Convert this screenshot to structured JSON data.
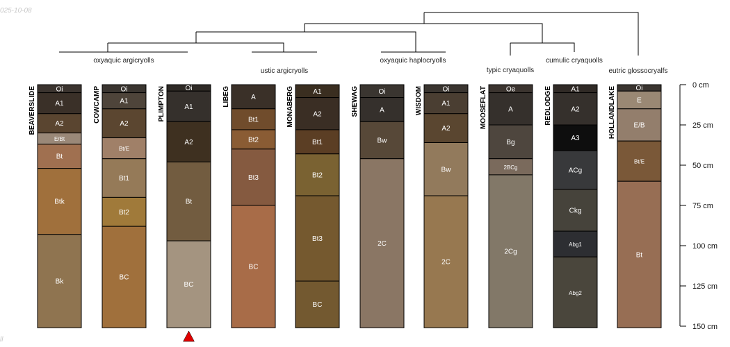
{
  "stamp_top": "025-10-08",
  "stamp_bottom": "ll",
  "depth_axis": {
    "unit": "cm",
    "max": 150,
    "ticks": [
      {
        "value": 0,
        "label": "0 cm"
      },
      {
        "value": 25,
        "label": "25 cm"
      },
      {
        "value": 50,
        "label": "50 cm"
      },
      {
        "value": 75,
        "label": "75 cm"
      },
      {
        "value": 100,
        "label": "100 cm"
      },
      {
        "value": 125,
        "label": "125 cm"
      },
      {
        "value": 150,
        "label": "150 cm"
      }
    ]
  },
  "taxa": [
    {
      "key": "oaa",
      "label": "oxyaquic argicryolls"
    },
    {
      "key": "ua",
      "label": "ustic argicryolls"
    },
    {
      "key": "oah",
      "label": "oxyaquic haplocryolls"
    },
    {
      "key": "tc",
      "label": "typic cryaquolls"
    },
    {
      "key": "cc",
      "label": "cumulic cryaquolls"
    },
    {
      "key": "eg",
      "label": "eutric glossocryalfs"
    }
  ],
  "marker": {
    "profile_index": 2,
    "color": "#e00000"
  },
  "profiles": [
    {
      "name": "BEAVERSLIDE",
      "horizons": [
        {
          "name": "Oi",
          "top": 0,
          "bottom": 5,
          "color": "#3b342f",
          "text": "#ffffff"
        },
        {
          "name": "A1",
          "top": 5,
          "bottom": 18,
          "color": "#3a3028",
          "text": "#ffffff"
        },
        {
          "name": "A2",
          "top": 18,
          "bottom": 30,
          "color": "#5a4530",
          "text": "#ffffff"
        },
        {
          "name": "E/Bt",
          "top": 30,
          "bottom": 37,
          "color": "#9a8878",
          "text": "#ffffff",
          "small": true
        },
        {
          "name": "Bt",
          "top": 37,
          "bottom": 52,
          "color": "#a07050",
          "text": "#ffffff"
        },
        {
          "name": "Btk",
          "top": 52,
          "bottom": 93,
          "color": "#a0703c",
          "text": "#ffffff"
        },
        {
          "name": "Bk",
          "top": 93,
          "bottom": 151,
          "color": "#8f7450",
          "text": "#ffffff"
        }
      ]
    },
    {
      "name": "COWCAMP",
      "horizons": [
        {
          "name": "Oi",
          "top": 0,
          "bottom": 5,
          "color": "#3a3530",
          "text": "#ffffff"
        },
        {
          "name": "A1",
          "top": 5,
          "bottom": 15,
          "color": "#4e443a",
          "text": "#ffffff"
        },
        {
          "name": "A2",
          "top": 15,
          "bottom": 33,
          "color": "#5b4630",
          "text": "#ffffff"
        },
        {
          "name": "Bt/E",
          "top": 33,
          "bottom": 46,
          "color": "#a08068",
          "text": "#ffffff",
          "small": true
        },
        {
          "name": "Bt1",
          "top": 46,
          "bottom": 70,
          "color": "#957a58",
          "text": "#ffffff"
        },
        {
          "name": "Bt2",
          "top": 70,
          "bottom": 88,
          "color": "#a07a3a",
          "text": "#ffffff"
        },
        {
          "name": "BC",
          "top": 88,
          "bottom": 151,
          "color": "#a0703c",
          "text": "#ffffff"
        }
      ]
    },
    {
      "name": "PLIMPTON",
      "horizons": [
        {
          "name": "Oi",
          "top": 0,
          "bottom": 4,
          "color": "#2e2a26",
          "text": "#ffffff"
        },
        {
          "name": "A1",
          "top": 4,
          "bottom": 23,
          "color": "#35302c",
          "text": "#ffffff"
        },
        {
          "name": "A2",
          "top": 23,
          "bottom": 48,
          "color": "#3e3020",
          "text": "#ffffff"
        },
        {
          "name": "Bt",
          "top": 48,
          "bottom": 97,
          "color": "#725c40",
          "text": "#ffffff"
        },
        {
          "name": "BC",
          "top": 97,
          "bottom": 151,
          "color": "#a49480",
          "text": "#ffffff"
        }
      ]
    },
    {
      "name": "LIBEG",
      "horizons": [
        {
          "name": "A",
          "top": 0,
          "bottom": 15,
          "color": "#3a3028",
          "text": "#ffffff"
        },
        {
          "name": "Bt1",
          "top": 15,
          "bottom": 28,
          "color": "#704c2c",
          "text": "#ffffff"
        },
        {
          "name": "Bt2",
          "top": 28,
          "bottom": 40,
          "color": "#8a5c34",
          "text": "#ffffff"
        },
        {
          "name": "Bt3",
          "top": 40,
          "bottom": 75,
          "color": "#855a40",
          "text": "#ffffff"
        },
        {
          "name": "BC",
          "top": 75,
          "bottom": 151,
          "color": "#a86c48",
          "text": "#ffffff"
        }
      ]
    },
    {
      "name": "MONABERG",
      "horizons": [
        {
          "name": "A1",
          "top": 0,
          "bottom": 8,
          "color": "#3a2e20",
          "text": "#ffffff"
        },
        {
          "name": "A2",
          "top": 8,
          "bottom": 28,
          "color": "#3a2e24",
          "text": "#ffffff"
        },
        {
          "name": "Bt1",
          "top": 28,
          "bottom": 43,
          "color": "#5b3e24",
          "text": "#ffffff"
        },
        {
          "name": "Bt2",
          "top": 43,
          "bottom": 69,
          "color": "#7a6232",
          "text": "#ffffff"
        },
        {
          "name": "Bt3",
          "top": 69,
          "bottom": 122,
          "color": "#75592f",
          "text": "#ffffff"
        },
        {
          "name": "BC",
          "top": 122,
          "bottom": 151,
          "color": "#735930",
          "text": "#ffffff"
        }
      ]
    },
    {
      "name": "SHEWAG",
      "horizons": [
        {
          "name": "Oi",
          "top": 0,
          "bottom": 8,
          "color": "#3a3530",
          "text": "#ffffff"
        },
        {
          "name": "A",
          "top": 8,
          "bottom": 23,
          "color": "#35302c",
          "text": "#ffffff"
        },
        {
          "name": "Bw",
          "top": 23,
          "bottom": 46,
          "color": "#574838",
          "text": "#ffffff"
        },
        {
          "name": "2C",
          "top": 46,
          "bottom": 151,
          "color": "#8a7664",
          "text": "#ffffff"
        }
      ]
    },
    {
      "name": "WISDOM",
      "horizons": [
        {
          "name": "Oi",
          "top": 0,
          "bottom": 5,
          "color": "#3a3530",
          "text": "#ffffff"
        },
        {
          "name": "A1",
          "top": 5,
          "bottom": 18,
          "color": "#4a3e32",
          "text": "#ffffff"
        },
        {
          "name": "A2",
          "top": 18,
          "bottom": 36,
          "color": "#5a4630",
          "text": "#ffffff"
        },
        {
          "name": "Bw",
          "top": 36,
          "bottom": 69,
          "color": "#927a5c",
          "text": "#ffffff"
        },
        {
          "name": "2C",
          "top": 69,
          "bottom": 151,
          "color": "#977850",
          "text": "#ffffff"
        }
      ]
    },
    {
      "name": "MOOSEFLAT",
      "horizons": [
        {
          "name": "Oe",
          "top": 0,
          "bottom": 5,
          "color": "#3b342f",
          "text": "#ffffff"
        },
        {
          "name": "A",
          "top": 5,
          "bottom": 25,
          "color": "#35302c",
          "text": "#ffffff"
        },
        {
          "name": "Bg",
          "top": 25,
          "bottom": 46,
          "color": "#4e463e",
          "text": "#ffffff"
        },
        {
          "name": "2BCg",
          "top": 46,
          "bottom": 56,
          "color": "#7a6a5c",
          "text": "#ffffff",
          "small": true
        },
        {
          "name": "2Cg",
          "top": 56,
          "bottom": 151,
          "color": "#827868",
          "text": "#ffffff"
        }
      ]
    },
    {
      "name": "REDLODGE",
      "horizons": [
        {
          "name": "A1",
          "top": 0,
          "bottom": 5,
          "color": "#302a26",
          "text": "#ffffff"
        },
        {
          "name": "A2",
          "top": 5,
          "bottom": 25,
          "color": "#35302c",
          "text": "#ffffff"
        },
        {
          "name": "A3",
          "top": 25,
          "bottom": 41,
          "color": "#0e0e0e",
          "text": "#ffffff"
        },
        {
          "name": "ACg",
          "top": 41,
          "bottom": 65,
          "color": "#38393b",
          "text": "#ffffff"
        },
        {
          "name": "Ckg",
          "top": 65,
          "bottom": 91,
          "color": "#46433b",
          "text": "#ffffff"
        },
        {
          "name": "Abg1",
          "top": 91,
          "bottom": 107,
          "color": "#2d2e32",
          "text": "#ffffff",
          "small": true
        },
        {
          "name": "Abg2",
          "top": 107,
          "bottom": 151,
          "color": "#4a463c",
          "text": "#ffffff",
          "small": true
        }
      ]
    },
    {
      "name": "HOLLANDLAKE",
      "horizons": [
        {
          "name": "Oi",
          "top": 0,
          "bottom": 4,
          "color": "#3a3530",
          "text": "#ffffff"
        },
        {
          "name": "E",
          "top": 4,
          "bottom": 15,
          "color": "#9a8874",
          "text": "#ffffff"
        },
        {
          "name": "E/B",
          "top": 15,
          "bottom": 35,
          "color": "#937e6c",
          "text": "#ffffff"
        },
        {
          "name": "Bt/E",
          "top": 35,
          "bottom": 60,
          "color": "#7a5838",
          "text": "#ffffff",
          "small": true
        },
        {
          "name": "Bt",
          "top": 60,
          "bottom": 151,
          "color": "#976e54",
          "text": "#ffffff"
        }
      ]
    }
  ]
}
